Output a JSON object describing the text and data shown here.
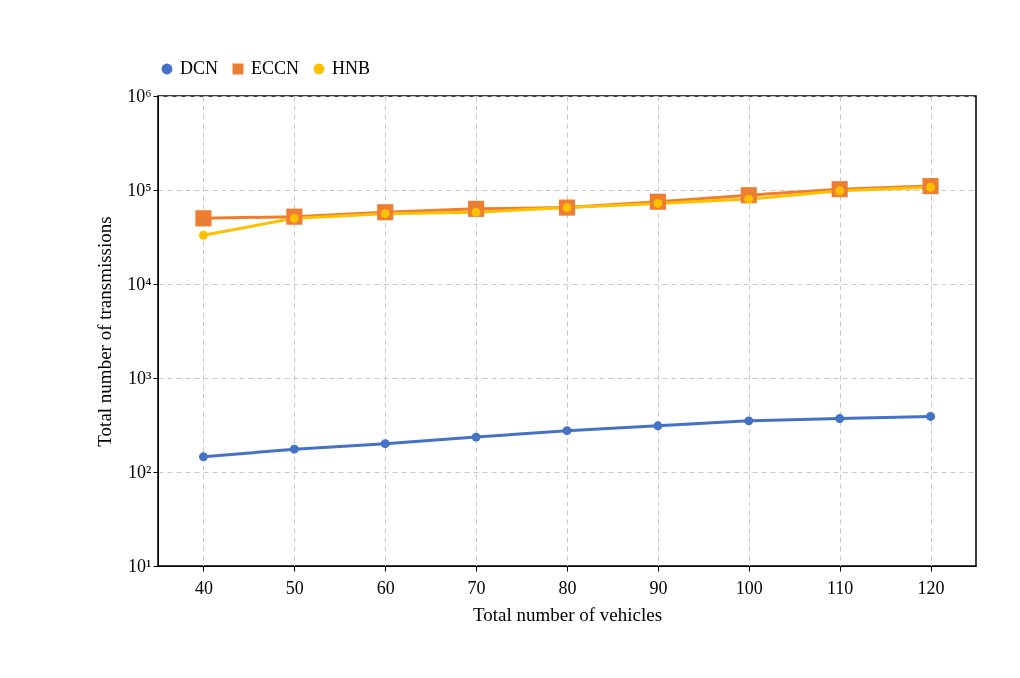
{
  "chart_data": {
    "type": "line",
    "xlabel": "Total number of  vehicles",
    "ylabel": "Total number of transmissions",
    "categories": [
      "40",
      "50",
      "60",
      "70",
      "80",
      "90",
      "100",
      "110",
      "120"
    ],
    "series": [
      {
        "name": "DCN",
        "color": "#4472c4",
        "marker": "circle",
        "values": [
          145,
          175,
          200,
          235,
          275,
          310,
          350,
          370,
          390
        ]
      },
      {
        "name": "ECCN",
        "color": "#ed7d31",
        "marker": "square",
        "values": [
          50000,
          52000,
          58000,
          63000,
          65000,
          75000,
          88000,
          102000,
          110000
        ]
      },
      {
        "name": "HNB",
        "color": "#ffc000",
        "marker": "circle",
        "values": [
          33000,
          50000,
          56000,
          58000,
          65000,
          72000,
          80000,
          98000,
          107000
        ]
      }
    ],
    "log": "y",
    "ylim": [
      10,
      1000000
    ],
    "yticks": [
      {
        "value": 10,
        "label": "10¹"
      },
      {
        "value": 100,
        "label": "10²"
      },
      {
        "value": 1000,
        "label": "10³"
      },
      {
        "value": 10000,
        "label": "10⁴"
      },
      {
        "value": 100000,
        "label": "10⁵"
      },
      {
        "value": 1000000,
        "label": "10⁶"
      }
    ],
    "grid": true,
    "legend": "top",
    "line_style": "solid"
  }
}
